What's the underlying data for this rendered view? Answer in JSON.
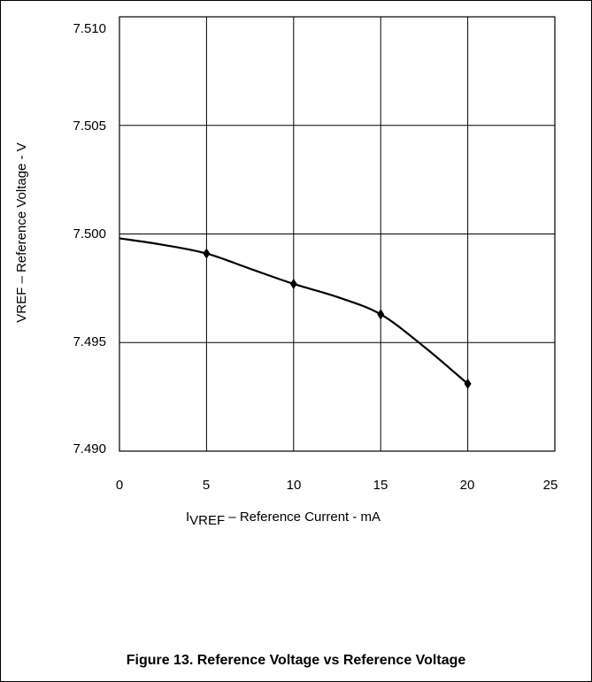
{
  "chart_data": {
    "type": "line",
    "xlabel_prefix": "I",
    "xlabel_subscript": "VREF",
    "xlabel_rest": " – Reference Current - mA",
    "ylabel": "VREF – Reference Voltage - V",
    "caption": "Figure 13. Reference Voltage vs Reference Voltage",
    "xlim": [
      0,
      25
    ],
    "ylim": [
      7.49,
      7.51
    ],
    "x_ticks": [
      "0",
      "5",
      "10",
      "15",
      "20",
      "25"
    ],
    "y_ticks": [
      "7.510",
      "7.505",
      "7.500",
      "7.495",
      "7.490"
    ],
    "grid": true,
    "series": [
      {
        "color": "#000000",
        "marker": "diamond",
        "curve_x": [
          0,
          2.5,
          5,
          7.5,
          10,
          12.5,
          15,
          17.5,
          20
        ],
        "curve_y": [
          7.4998,
          7.4995,
          7.4991,
          7.4984,
          7.4977,
          7.4971,
          7.4963,
          7.4948,
          7.4931
        ],
        "marker_x": [
          5,
          10,
          15,
          20
        ],
        "marker_y": [
          7.4991,
          7.4977,
          7.4963,
          7.4931
        ]
      }
    ]
  }
}
